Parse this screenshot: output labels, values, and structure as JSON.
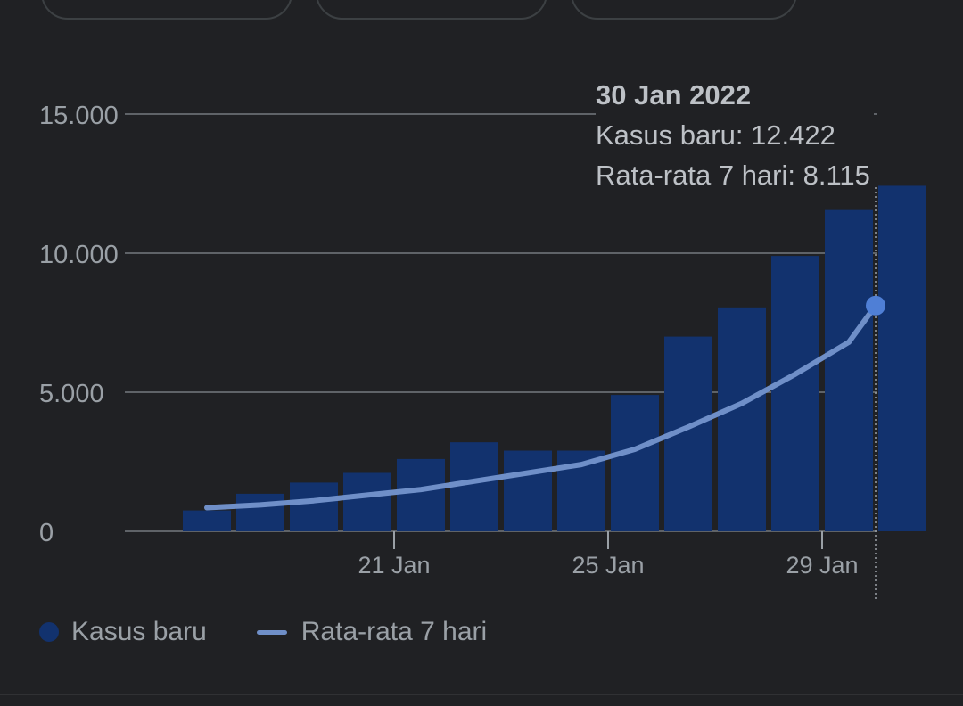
{
  "colors": {
    "background": "#202124",
    "bar": "#12326e",
    "line": "#6f8fc8",
    "marker": "#4f7fd6",
    "grid": "#5f6368",
    "text": "#9aa0a6",
    "tooltip_text": "#bdc1c6"
  },
  "tooltip": {
    "date": "30 Jan 2022",
    "cases_line": "Kasus baru: 12.422",
    "avg_line": "Rata-rata 7 hari: 8.115"
  },
  "legend": {
    "cases": "Kasus baru",
    "avg": "Rata-rata 7 hari"
  },
  "chart_data": {
    "type": "bar",
    "y_ticks": [
      0,
      5000,
      10000,
      15000
    ],
    "y_tick_labels": [
      "0",
      "5.000",
      "10.000",
      "15.000"
    ],
    "ylim": [
      0,
      15000
    ],
    "x_tick_labels": [
      {
        "day": 21,
        "label": "21 Jan"
      },
      {
        "day": 25,
        "label": "25 Jan"
      },
      {
        "day": 29,
        "label": "29 Jan"
      }
    ],
    "days": [
      17,
      18,
      19,
      20,
      21,
      22,
      23,
      24,
      25,
      26,
      27,
      28,
      29,
      30
    ],
    "series": [
      {
        "name": "Kasus baru",
        "type": "bar",
        "values": [
          750,
          1350,
          1750,
          2100,
          2600,
          3200,
          2900,
          2900,
          4900,
          7000,
          8050,
          9900,
          11550,
          12422
        ]
      },
      {
        "name": "Rata-rata 7 hari",
        "type": "line",
        "values": [
          850,
          950,
          1100,
          1300,
          1500,
          1800,
          2100,
          2400,
          2950,
          3750,
          4600,
          5650,
          6800,
          8115
        ]
      }
    ],
    "selected_day": 30,
    "grid": true,
    "legend_position": "bottom-left"
  }
}
